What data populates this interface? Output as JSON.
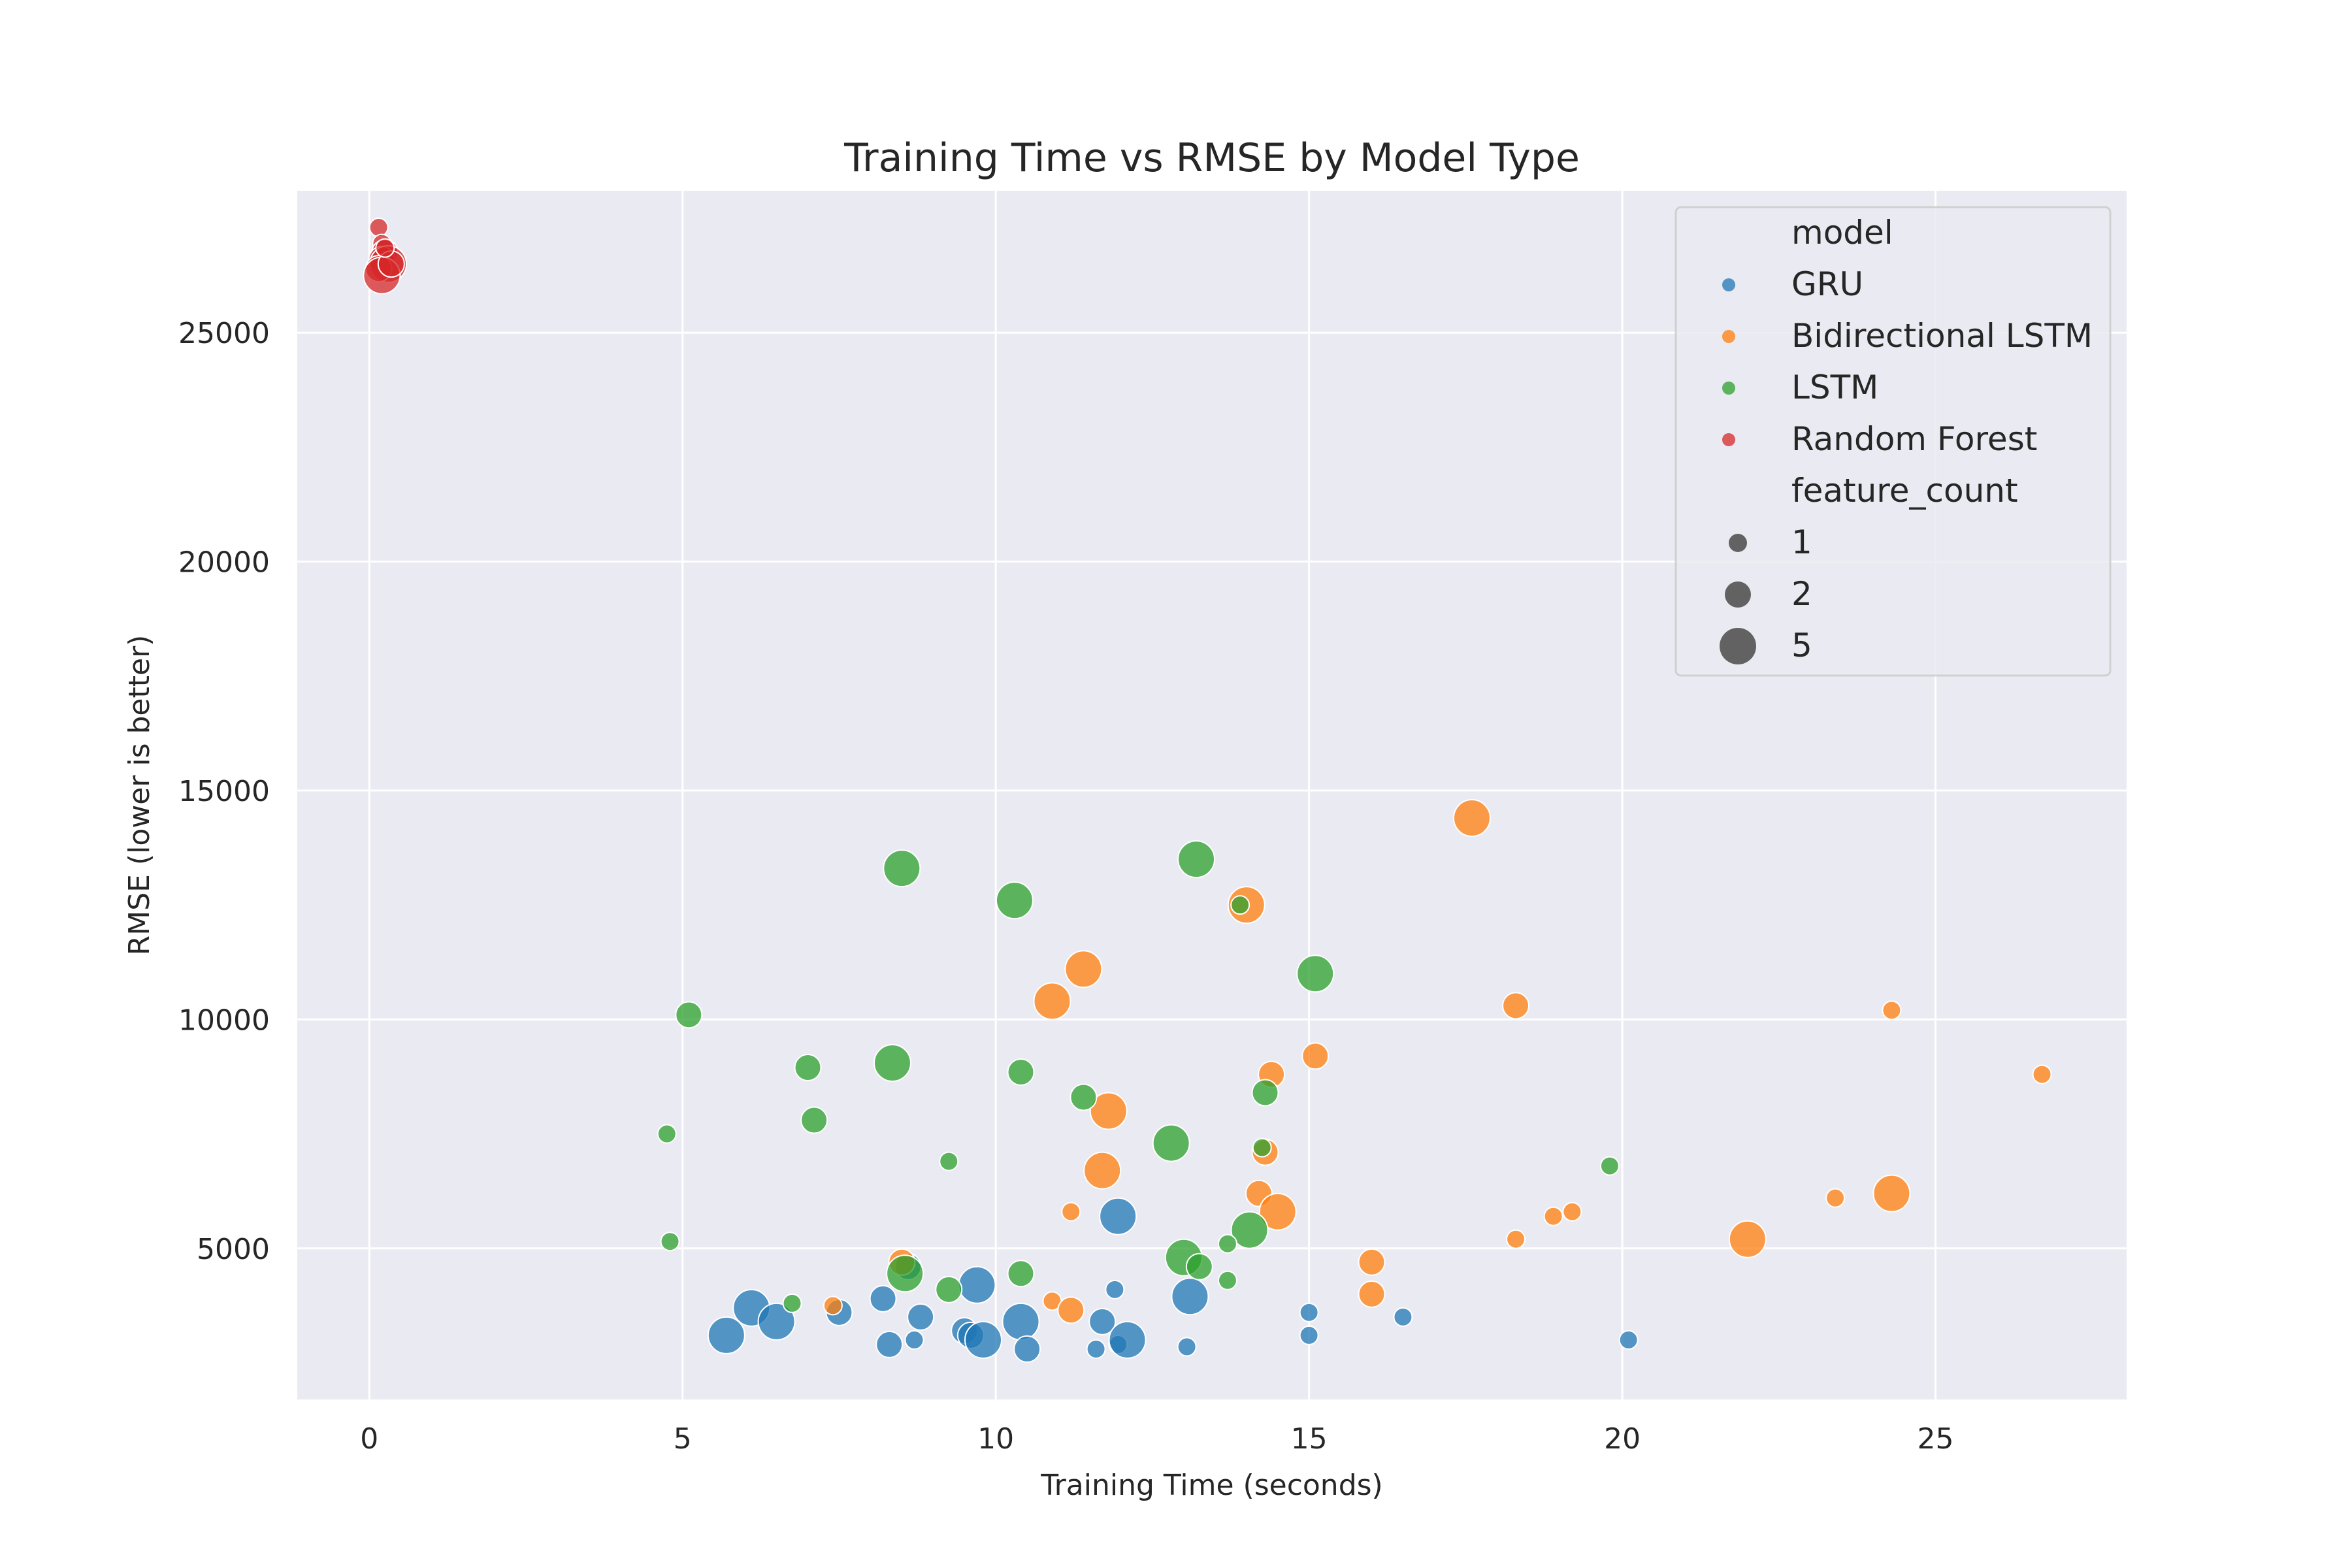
{
  "chart_data": {
    "type": "scatter",
    "title": "Training Time vs RMSE by Model Type",
    "xlabel": "Training Time (seconds)",
    "ylabel": "RMSE (lower is better)",
    "xlim": [
      -1.15,
      28.05
    ],
    "ylim": [
      1700,
      28100
    ],
    "xticks": [
      0,
      5,
      10,
      15,
      20,
      25
    ],
    "yticks": [
      5000,
      10000,
      15000,
      20000,
      25000
    ],
    "grid": true,
    "legend_position": "top-right",
    "legend_hue_title": "model",
    "legend_size_title": "feature_count",
    "size_legend": [
      1,
      2,
      5
    ],
    "series": [
      {
        "name": "GRU",
        "color": "#1f77b4",
        "points": [
          [
            5.7,
            3100,
            5
          ],
          [
            6.1,
            3700,
            5
          ],
          [
            6.5,
            3400,
            5
          ],
          [
            7.5,
            3600,
            2
          ],
          [
            8.2,
            3900,
            2
          ],
          [
            8.3,
            2900,
            2
          ],
          [
            8.6,
            4600,
            2
          ],
          [
            8.7,
            3000,
            1
          ],
          [
            8.8,
            3500,
            2
          ],
          [
            9.5,
            3200,
            2
          ],
          [
            9.6,
            3100,
            2
          ],
          [
            9.7,
            4200,
            5
          ],
          [
            9.8,
            3000,
            5
          ],
          [
            10.4,
            3400,
            5
          ],
          [
            10.5,
            2800,
            2
          ],
          [
            11.6,
            2800,
            1
          ],
          [
            11.7,
            3400,
            2
          ],
          [
            11.9,
            4100,
            1
          ],
          [
            11.95,
            2900,
            1
          ],
          [
            12.1,
            3000,
            5
          ],
          [
            11.95,
            5700,
            5
          ],
          [
            13.1,
            3950,
            5
          ],
          [
            13.05,
            2850,
            1
          ],
          [
            15.0,
            3600,
            1
          ],
          [
            15.0,
            3100,
            1
          ],
          [
            16.5,
            3500,
            1
          ],
          [
            20.1,
            3000,
            1
          ]
        ]
      },
      {
        "name": "Bidirectional LSTM",
        "color": "#ff7f0e",
        "points": [
          [
            17.6,
            14400,
            5
          ],
          [
            14.0,
            12500,
            5
          ],
          [
            11.4,
            11100,
            5
          ],
          [
            10.9,
            10400,
            5
          ],
          [
            18.3,
            10300,
            2
          ],
          [
            24.3,
            10200,
            1
          ],
          [
            15.1,
            9200,
            2
          ],
          [
            14.4,
            8800,
            2
          ],
          [
            26.7,
            8800,
            1
          ],
          [
            11.8,
            8000,
            5
          ],
          [
            14.3,
            7100,
            2
          ],
          [
            11.7,
            6700,
            5
          ],
          [
            14.2,
            6200,
            2
          ],
          [
            14.5,
            5800,
            5
          ],
          [
            11.2,
            5800,
            1
          ],
          [
            23.4,
            6100,
            1
          ],
          [
            24.3,
            6200,
            5
          ],
          [
            19.2,
            5800,
            1
          ],
          [
            18.9,
            5700,
            1
          ],
          [
            22.0,
            5200,
            5
          ],
          [
            18.3,
            5200,
            1
          ],
          [
            16.0,
            4700,
            2
          ],
          [
            8.5,
            4700,
            2
          ],
          [
            7.4,
            3750,
            1
          ],
          [
            10.9,
            3850,
            1
          ],
          [
            11.2,
            3650,
            2
          ],
          [
            16.0,
            4000,
            2
          ]
        ]
      },
      {
        "name": "LSTM",
        "color": "#2ca02c",
        "points": [
          [
            13.2,
            13500,
            5
          ],
          [
            8.5,
            13300,
            5
          ],
          [
            10.3,
            12600,
            5
          ],
          [
            13.9,
            12500,
            1
          ],
          [
            15.1,
            11000,
            5
          ],
          [
            5.1,
            10100,
            2
          ],
          [
            7.0,
            8950,
            2
          ],
          [
            8.35,
            9050,
            5
          ],
          [
            10.4,
            8850,
            2
          ],
          [
            11.4,
            8300,
            2
          ],
          [
            14.3,
            8400,
            2
          ],
          [
            4.75,
            7500,
            1
          ],
          [
            7.1,
            7800,
            2
          ],
          [
            12.8,
            7300,
            5
          ],
          [
            14.25,
            7200,
            1
          ],
          [
            9.25,
            6900,
            1
          ],
          [
            19.8,
            6800,
            1
          ],
          [
            14.05,
            5400,
            5
          ],
          [
            13.7,
            5100,
            1
          ],
          [
            4.8,
            5150,
            1
          ],
          [
            13.0,
            4800,
            5
          ],
          [
            13.25,
            4600,
            2
          ],
          [
            8.55,
            4450,
            5
          ],
          [
            10.4,
            4450,
            2
          ],
          [
            9.25,
            4100,
            2
          ],
          [
            13.7,
            4300,
            1
          ],
          [
            6.75,
            3800,
            1
          ]
        ]
      },
      {
        "name": "Random Forest",
        "color": "#d62728",
        "points": [
          [
            0.15,
            27300,
            1
          ],
          [
            0.2,
            26950,
            1
          ],
          [
            0.25,
            26750,
            2
          ],
          [
            0.2,
            26600,
            2
          ],
          [
            0.3,
            26500,
            5
          ],
          [
            0.15,
            26400,
            2
          ],
          [
            0.2,
            26250,
            5
          ],
          [
            0.35,
            26500,
            2
          ],
          [
            0.25,
            26850,
            1
          ]
        ]
      }
    ]
  }
}
